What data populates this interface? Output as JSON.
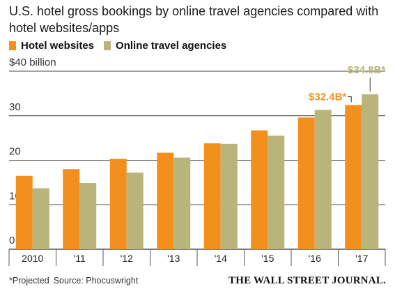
{
  "header": {
    "title": "U.S. hotel gross bookings by online travel agencies compared with hotel websites/apps"
  },
  "legend": [
    {
      "label": "Hotel websites",
      "color": "#f3901d"
    },
    {
      "label": "Online travel agencies",
      "color": "#b8b47a"
    }
  ],
  "footer": {
    "note": "*Projected",
    "source": "Source: Phocuswright",
    "publisher": "THE WALL STREET JOURNAL."
  },
  "chart_data": {
    "type": "bar",
    "title": "U.S. hotel gross bookings by online travel agencies compared with hotel websites/apps",
    "categories": [
      "2010",
      "'11",
      "'12",
      "'13",
      "'14",
      "'15",
      "'16",
      "'17"
    ],
    "series": [
      {
        "name": "Hotel websites",
        "color": "#f3901d",
        "values": [
          16.5,
          18.0,
          20.3,
          21.7,
          23.8,
          26.7,
          29.6,
          32.4
        ]
      },
      {
        "name": "Online travel agencies",
        "color": "#b8b47a",
        "values": [
          13.7,
          14.9,
          17.2,
          20.6,
          23.7,
          25.5,
          31.3,
          34.8
        ]
      }
    ],
    "y_ticks": [
      {
        "value": 40,
        "label": "$40 billion"
      },
      {
        "value": 30,
        "label": "30"
      },
      {
        "value": 20,
        "label": "20"
      },
      {
        "value": 10,
        "label": "10"
      },
      {
        "value": 0,
        "label": "0"
      }
    ],
    "ylim": [
      0,
      40
    ],
    "grid": true,
    "legend_position": "top-left",
    "annotations": [
      {
        "series": 0,
        "category": 7,
        "text": "$32.4B*",
        "color": "#f3901d"
      },
      {
        "series": 1,
        "category": 7,
        "text": "$34.8B*",
        "color": "#b8b47a"
      }
    ]
  }
}
